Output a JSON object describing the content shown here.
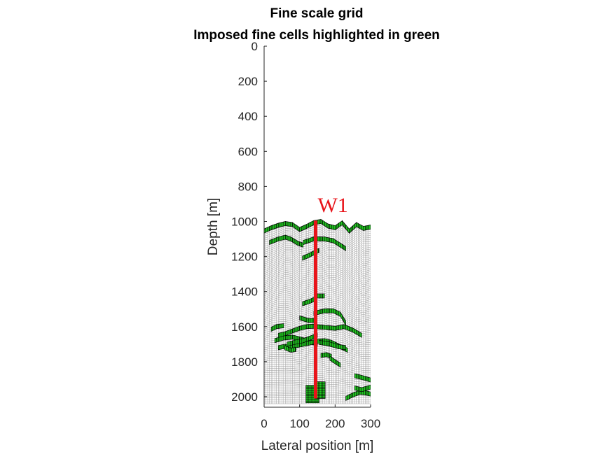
{
  "chart_data": {
    "type": "grid",
    "title": "Fine scale grid",
    "subtitle": "Imposed fine cells highlighted in green",
    "xlabel": "Lateral position [m]",
    "ylabel": "Depth [m]",
    "xlim": [
      0,
      300
    ],
    "ylim": [
      0,
      2060
    ],
    "y_reversed": true,
    "xticks": [
      0,
      100,
      200,
      300
    ],
    "yticks": [
      0,
      200,
      400,
      600,
      800,
      1000,
      1200,
      1400,
      1600,
      1800,
      2000
    ],
    "colors": {
      "grid_lines": "#9a9a9a",
      "fine_cells": "#22cc22",
      "well": "#e8141a",
      "axis": "#262626"
    },
    "top_surface": {
      "x": [
        0,
        20,
        40,
        60,
        80,
        100,
        120,
        140,
        160,
        180,
        200,
        220,
        240,
        260,
        280,
        300
      ],
      "depth": [
        1060,
        1040,
        1025,
        1015,
        1022,
        1050,
        1030,
        1010,
        1002,
        1030,
        1040,
        1010,
        1060,
        1020,
        1045,
        1035
      ]
    },
    "bottom_depth": 2040,
    "well": {
      "name": "W1",
      "x": 145,
      "top_depth": 995,
      "bottom_depth": 2010
    },
    "fine_bands": [
      {
        "x": [
          0,
          20,
          40,
          60,
          80,
          100,
          120,
          140,
          160,
          180,
          200,
          220,
          240,
          260,
          280,
          300
        ],
        "depth": [
          1055,
          1036,
          1022,
          1012,
          1018,
          1046,
          1028,
          1007,
          1000,
          1026,
          1036,
          1008,
          1055,
          1018,
          1040,
          1032
        ]
      },
      {
        "x": [
          15,
          40,
          60,
          75,
          95,
          110
        ],
        "depth": [
          1120,
          1100,
          1090,
          1100,
          1125,
          1135
        ]
      },
      {
        "x": [
          110,
          140,
          170,
          195,
          230
        ],
        "depth": [
          1120,
          1100,
          1100,
          1110,
          1155
        ]
      },
      {
        "x": [
          108,
          125,
          145,
          155
        ],
        "depth": [
          1210,
          1195,
          1175,
          1165
        ]
      },
      {
        "x": [
          145,
          170
        ],
        "depth": [
          1425,
          1425
        ]
      },
      {
        "x": [
          108,
          130,
          145
        ],
        "depth": [
          1470,
          1455,
          1440
        ]
      },
      {
        "x": [
          140,
          170,
          195,
          215,
          230
        ],
        "depth": [
          1525,
          1510,
          1510,
          1530,
          1580
        ]
      },
      {
        "x": [
          100,
          125,
          145
        ],
        "depth": [
          1550,
          1565,
          1565
        ]
      },
      {
        "x": [
          20,
          35,
          55
        ],
        "depth": [
          1615,
          1600,
          1595
        ]
      },
      {
        "x": [
          40,
          60,
          80,
          100,
          120,
          140
        ],
        "depth": [
          1650,
          1640,
          1625,
          1610,
          1600,
          1598
        ]
      },
      {
        "x": [
          145,
          175,
          200,
          225,
          250,
          275
        ],
        "depth": [
          1600,
          1605,
          1610,
          1600,
          1620,
          1650
        ]
      },
      {
        "x": [
          30,
          55,
          80,
          110,
          135,
          150
        ],
        "depth": [
          1680,
          1665,
          1660,
          1675,
          1690,
          1700
        ]
      },
      {
        "x": [
          40,
          60,
          75,
          100,
          125,
          145,
          170,
          190,
          210,
          235
        ],
        "depth": [
          1720,
          1712,
          1715,
          1705,
          1695,
          1685,
          1680,
          1690,
          1710,
          1735
        ]
      },
      {
        "x": [
          58,
          75,
          90
        ],
        "depth": [
          1720,
          1735,
          1730
        ]
      },
      {
        "x": [
          65,
          85,
          110,
          130,
          150
        ],
        "depth": [
          1700,
          1690,
          1680,
          1665,
          1650
        ]
      },
      {
        "x": [
          155,
          185,
          210,
          230
        ],
        "depth": [
          1690,
          1700,
          1715,
          1720
        ]
      },
      {
        "x": [
          160,
          175,
          190
        ],
        "depth": [
          1765,
          1760,
          1770
        ]
      },
      {
        "x": [
          185,
          200,
          215
        ],
        "depth": [
          1780,
          1800,
          1820
        ]
      },
      {
        "x": [
          255,
          275,
          300
        ],
        "depth": [
          1880,
          1890,
          1905
        ]
      },
      {
        "x": [
          230,
          250,
          270,
          290,
          300
        ],
        "depth": [
          2010,
          1990,
          1975,
          1980,
          1985
        ]
      },
      {
        "x": [
          255,
          275,
          300
        ],
        "depth": [
          1950,
          1960,
          1945
        ]
      }
    ],
    "fine_blocks": [
      {
        "x0": 118,
        "x1": 155,
        "depth0": 1935,
        "depth1": 2035
      },
      {
        "x0": 145,
        "x1": 172,
        "depth0": 1915,
        "depth1": 2010
      }
    ],
    "grid_columns": 60,
    "grid_layers": 90
  }
}
